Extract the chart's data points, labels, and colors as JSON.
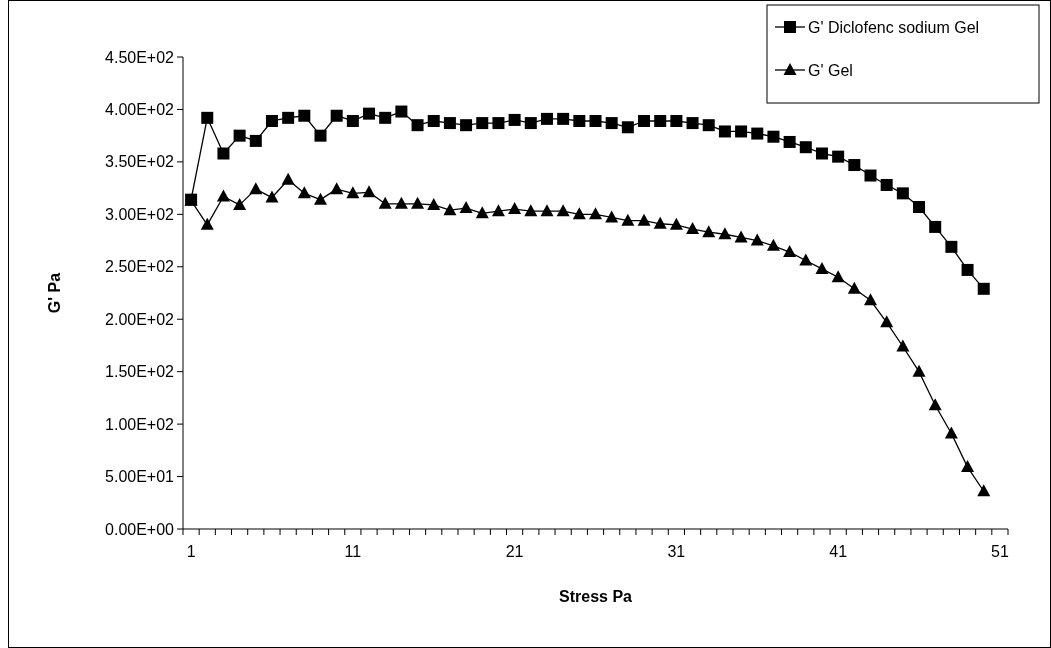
{
  "chart_data": {
    "type": "line",
    "xlabel": "Stress Pa",
    "ylabel": "G' Pa",
    "categories": [
      "1",
      null,
      null,
      null,
      null,
      null,
      null,
      null,
      null,
      null,
      "11",
      null,
      null,
      null,
      null,
      null,
      null,
      null,
      null,
      null,
      "21",
      null,
      null,
      null,
      null,
      null,
      null,
      null,
      null,
      null,
      "31",
      null,
      null,
      null,
      null,
      null,
      null,
      null,
      null,
      null,
      "41",
      null,
      null,
      null,
      null,
      null,
      null,
      null,
      null,
      null,
      "51"
    ],
    "series": [
      {
        "name": "G' Diclofenc sodium Gel",
        "color": "#000000",
        "marker": "square",
        "values": [
          314,
          392,
          358,
          375,
          370,
          389,
          392,
          394,
          375,
          394,
          389,
          396,
          392,
          398,
          385,
          389,
          387,
          385,
          387,
          387,
          390,
          387,
          391,
          391,
          389,
          389,
          387,
          383,
          389,
          389,
          389,
          387,
          385,
          379,
          379,
          377,
          374,
          369,
          364,
          358,
          355,
          347,
          337,
          328,
          320,
          307,
          288,
          269,
          247,
          229,
          null
        ]
      },
      {
        "name": "G' Gel",
        "color": "#000000",
        "marker": "triangle",
        "values": [
          313,
          290,
          317,
          309,
          324,
          316,
          333,
          320,
          314,
          324,
          320,
          321,
          310,
          310,
          310,
          309,
          304,
          306,
          301,
          303,
          305,
          303,
          303,
          303,
          300,
          300,
          297,
          294,
          294,
          291,
          290,
          286,
          283,
          281,
          278,
          275,
          270,
          264,
          256,
          248,
          240,
          229,
          218,
          197,
          174,
          150,
          118,
          91,
          59,
          36,
          null
        ]
      }
    ],
    "ylim": [
      0,
      450
    ],
    "yticks": [
      {
        "value": 0,
        "label": "0.00E+00"
      },
      {
        "value": 50,
        "label": "5.00E+01"
      },
      {
        "value": 100,
        "label": "1.00E+02"
      },
      {
        "value": 150,
        "label": "1.50E+02"
      },
      {
        "value": 200,
        "label": "2.00E+02"
      },
      {
        "value": 250,
        "label": "2.50E+02"
      },
      {
        "value": 300,
        "label": "3.00E+02"
      },
      {
        "value": 350,
        "label": "3.50E+02"
      },
      {
        "value": 400,
        "label": "4.00E+02"
      },
      {
        "value": 450,
        "label": "4.50E+02"
      }
    ],
    "grid": false,
    "legend": "top right",
    "line_style": "solid"
  }
}
